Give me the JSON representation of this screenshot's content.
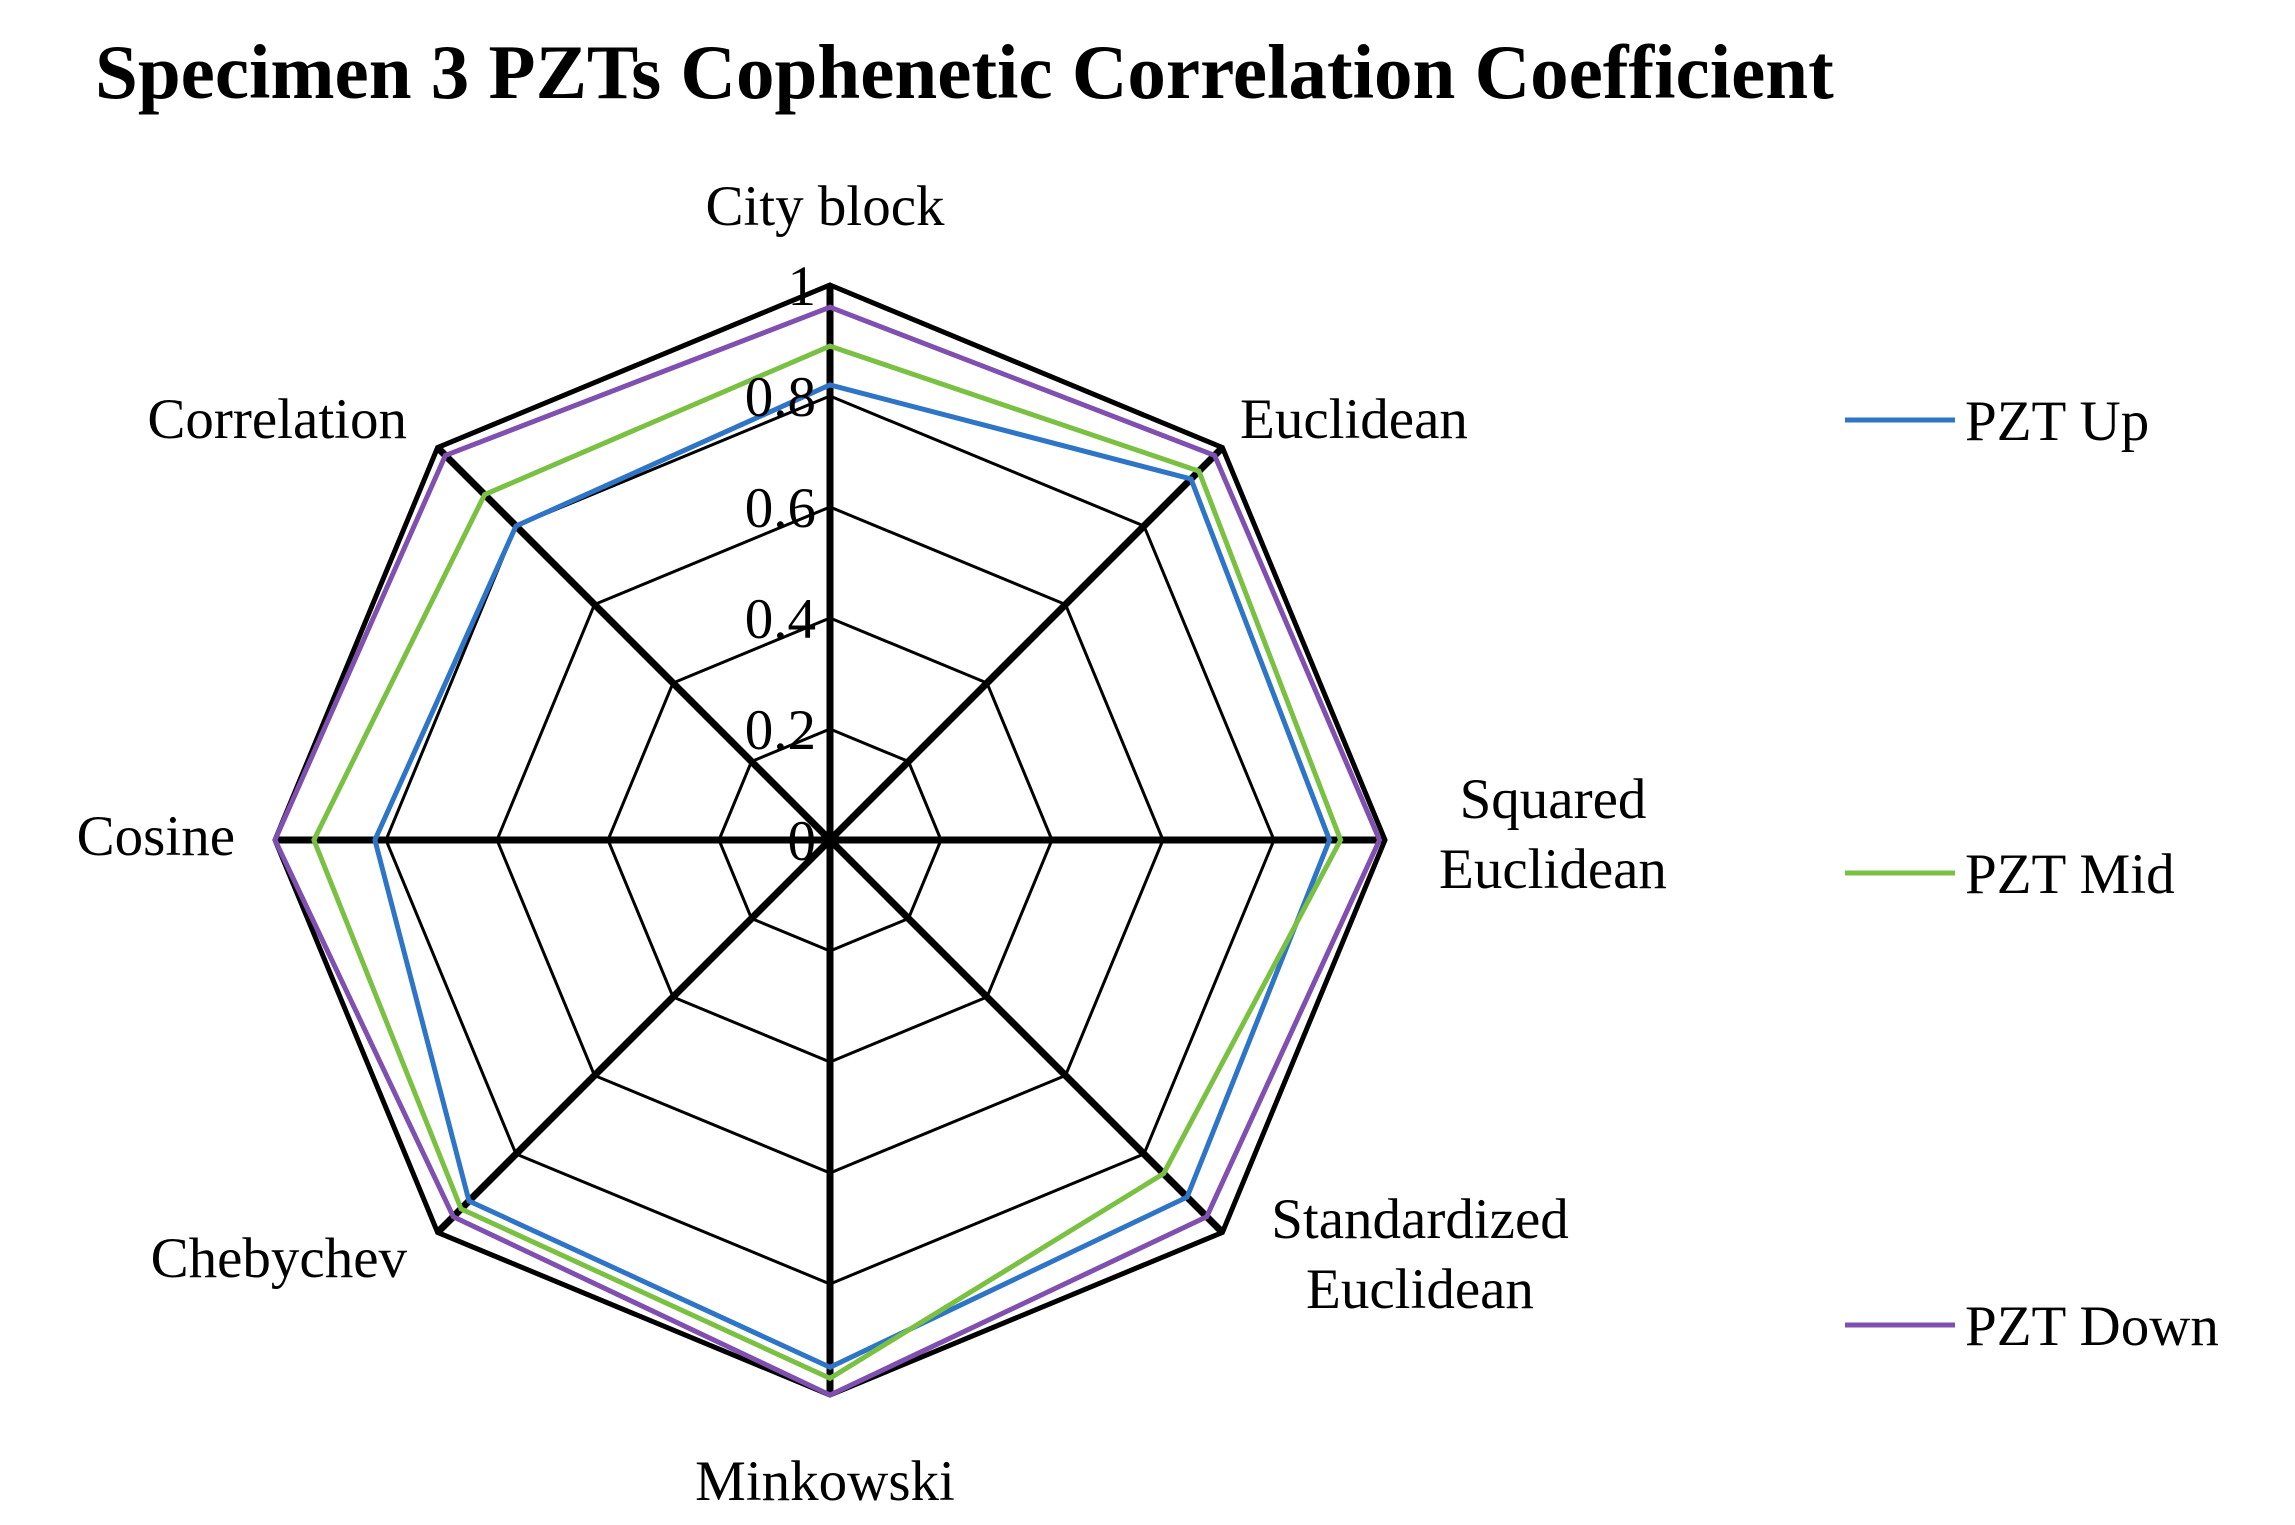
{
  "chart_data": {
    "type": "radar",
    "title": "Specimen 3 PZTs Cophenetic Correlation Coefficient",
    "categories": [
      "City block",
      "Euclidean",
      "Squared Euclidean",
      "Standardized Euclidean",
      "Minkowski",
      "Chebychev",
      "Cosine",
      "Correlation"
    ],
    "ticks": [
      "0",
      "0.2",
      "0.4",
      "0.6",
      "0.8",
      "1"
    ],
    "rlim": [
      0,
      1
    ],
    "grid": true,
    "legend_position": "right",
    "series": [
      {
        "name": "PZT Up",
        "color": "#2e75c8",
        "values": [
          0.82,
          0.92,
          0.9,
          0.91,
          0.95,
          0.92,
          0.82,
          0.8
        ]
      },
      {
        "name": "PZT Mid",
        "color": "#7ac143",
        "values": [
          0.89,
          0.94,
          0.92,
          0.85,
          0.97,
          0.94,
          0.93,
          0.88
        ]
      },
      {
        "name": "PZT Down",
        "color": "#8050b0",
        "values": [
          0.96,
          0.98,
          0.99,
          0.96,
          1.0,
          0.96,
          1.0,
          0.98
        ]
      }
    ]
  }
}
